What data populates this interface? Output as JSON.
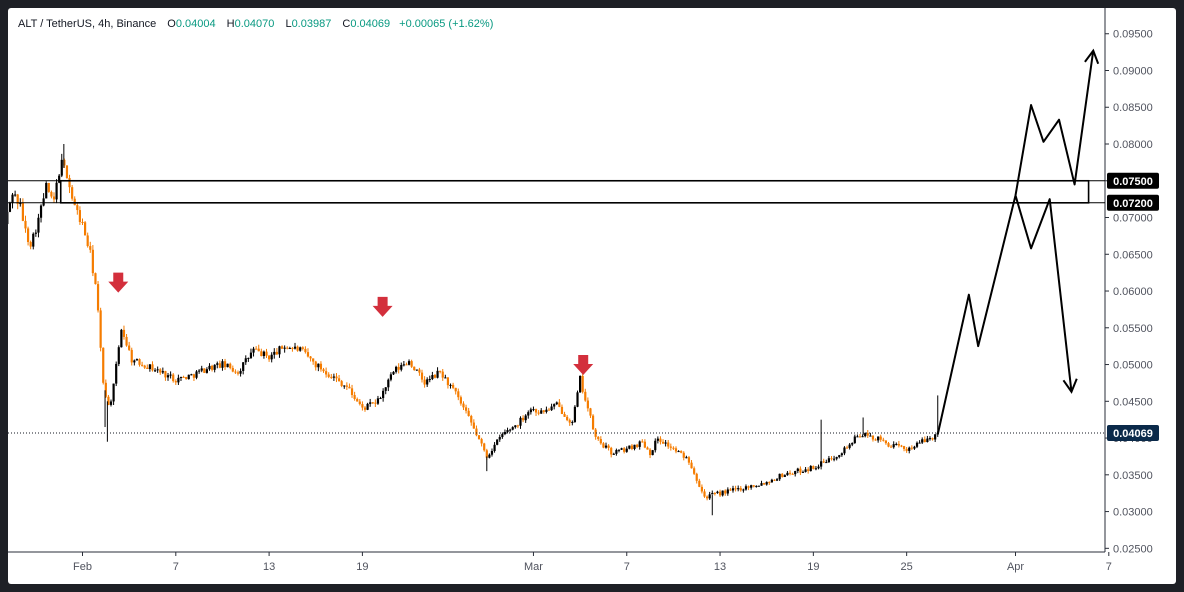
{
  "legend": {
    "symbol": "ALT / TetherUS, 4h, Binance",
    "open_key": "O",
    "open": "0.04004",
    "high_key": "H",
    "high": "0.04070",
    "low_key": "L",
    "low": "0.03987",
    "close_key": "C",
    "close": "0.04069",
    "change": "+0.00065 (+1.62%)"
  },
  "colors": {
    "up": "#000000",
    "down": "#f57c00",
    "arrow_marker": "#d32f3c",
    "price_tag": "#0b2a4a",
    "level_tag": "#000000"
  },
  "chart_data": {
    "type": "candlestick",
    "x_axis": {
      "tick_labels": [
        "Feb",
        "7",
        "13",
        "19",
        "Mar",
        "7",
        "13",
        "19",
        "25",
        "Apr",
        "7"
      ],
      "day_index": [
        0,
        6,
        12,
        18,
        29,
        35,
        41,
        47,
        53,
        60,
        66
      ]
    },
    "y_axis": {
      "range": [
        0.0245,
        0.0985
      ],
      "tick_labels": [
        "0.02500",
        "0.03000",
        "0.03500",
        "0.04000",
        "0.04500",
        "0.05000",
        "0.05500",
        "0.06000",
        "0.06500",
        "0.07000",
        "0.07500",
        "0.08000",
        "0.08500",
        "0.09000",
        "0.09500"
      ],
      "ticks": [
        0.025,
        0.03,
        0.035,
        0.04,
        0.045,
        0.05,
        0.055,
        0.06,
        0.065,
        0.07,
        0.075,
        0.08,
        0.085,
        0.09,
        0.095
      ],
      "side": "right",
      "grid": false
    },
    "current_price": {
      "value": 0.04069,
      "label": "0.04069"
    },
    "zone": {
      "top": 0.075,
      "bottom": 0.072,
      "top_label": "0.07500",
      "bottom_label": "0.07200",
      "start_day": -1.4,
      "end_day": 64.7
    },
    "anchors": [
      [
        -5.0,
        0.069
      ],
      [
        -4.5,
        0.0735
      ],
      [
        -4.0,
        0.0715
      ],
      [
        -3.6,
        0.0675
      ],
      [
        -3.3,
        0.0665
      ],
      [
        -2.8,
        0.07
      ],
      [
        -2.3,
        0.0745
      ],
      [
        -1.9,
        0.0715
      ],
      [
        -1.4,
        0.0775
      ],
      [
        -1.0,
        0.076
      ],
      [
        -0.6,
        0.072
      ],
      [
        0.0,
        0.069
      ],
      [
        0.5,
        0.065
      ],
      [
        0.9,
        0.06
      ],
      [
        1.3,
        0.048
      ],
      [
        1.7,
        0.044
      ],
      [
        2.0,
        0.047
      ],
      [
        2.5,
        0.055
      ],
      [
        3.2,
        0.0505
      ],
      [
        4.0,
        0.05
      ],
      [
        5.0,
        0.049
      ],
      [
        6.0,
        0.048
      ],
      [
        7.0,
        0.0485
      ],
      [
        8.0,
        0.0495
      ],
      [
        9.0,
        0.05
      ],
      [
        10.0,
        0.049
      ],
      [
        11.0,
        0.052
      ],
      [
        12.0,
        0.051
      ],
      [
        13.0,
        0.0525
      ],
      [
        14.0,
        0.052
      ],
      [
        15.0,
        0.05
      ],
      [
        16.0,
        0.0485
      ],
      [
        17.0,
        0.047
      ],
      [
        18.0,
        0.044
      ],
      [
        19.0,
        0.045
      ],
      [
        20.0,
        0.049
      ],
      [
        21.0,
        0.0505
      ],
      [
        22.0,
        0.0475
      ],
      [
        23.0,
        0.049
      ],
      [
        24.0,
        0.046
      ],
      [
        25.0,
        0.042
      ],
      [
        26.0,
        0.0375
      ],
      [
        27.0,
        0.0405
      ],
      [
        28.0,
        0.042
      ],
      [
        28.8,
        0.044
      ],
      [
        29.5,
        0.0435
      ],
      [
        30.5,
        0.0445
      ],
      [
        31.5,
        0.042
      ],
      [
        32.0,
        0.048
      ],
      [
        33.0,
        0.04
      ],
      [
        34.0,
        0.038
      ],
      [
        35.0,
        0.0385
      ],
      [
        36.0,
        0.0395
      ],
      [
        36.5,
        0.038
      ],
      [
        37.0,
        0.04
      ],
      [
        38.0,
        0.0385
      ],
      [
        39.0,
        0.037
      ],
      [
        40.0,
        0.032
      ],
      [
        41.0,
        0.0325
      ],
      [
        42.0,
        0.033
      ],
      [
        43.0,
        0.0335
      ],
      [
        44.0,
        0.034
      ],
      [
        45.0,
        0.035
      ],
      [
        46.0,
        0.0355
      ],
      [
        47.0,
        0.036
      ],
      [
        48.0,
        0.037
      ],
      [
        49.0,
        0.0385
      ],
      [
        50.0,
        0.0405
      ],
      [
        51.0,
        0.04
      ],
      [
        52.0,
        0.039
      ],
      [
        53.0,
        0.0385
      ],
      [
        54.0,
        0.0395
      ],
      [
        55.0,
        0.0405
      ]
    ],
    "spikes": [
      {
        "day": 1.6,
        "low": 0.0395
      },
      {
        "day": 1.45,
        "low": 0.0415
      },
      {
        "day": -1.2,
        "high": 0.08
      },
      {
        "day": 26.0,
        "low": 0.0355
      },
      {
        "day": 40.5,
        "low": 0.0295
      },
      {
        "day": 47.5,
        "high": 0.0425
      },
      {
        "day": 50.2,
        "high": 0.0428
      },
      {
        "day": 55.0,
        "high": 0.0458
      }
    ],
    "red_arrows": [
      {
        "day": 2.3,
        "price": 0.0625
      },
      {
        "day": 19.3,
        "price": 0.0592
      },
      {
        "day": 32.2,
        "price": 0.0513
      }
    ],
    "projection_up": [
      [
        55.0,
        0.0405
      ],
      [
        57.0,
        0.0595
      ],
      [
        57.6,
        0.0525
      ],
      [
        60.0,
        0.073
      ],
      [
        61.0,
        0.0853
      ],
      [
        61.8,
        0.0803
      ],
      [
        62.8,
        0.0833
      ],
      [
        63.8,
        0.0745
      ],
      [
        65.0,
        0.0927
      ]
    ],
    "projection_down": [
      [
        60.0,
        0.073
      ],
      [
        61.0,
        0.0658
      ],
      [
        62.2,
        0.0725
      ],
      [
        63.6,
        0.0463
      ]
    ]
  }
}
